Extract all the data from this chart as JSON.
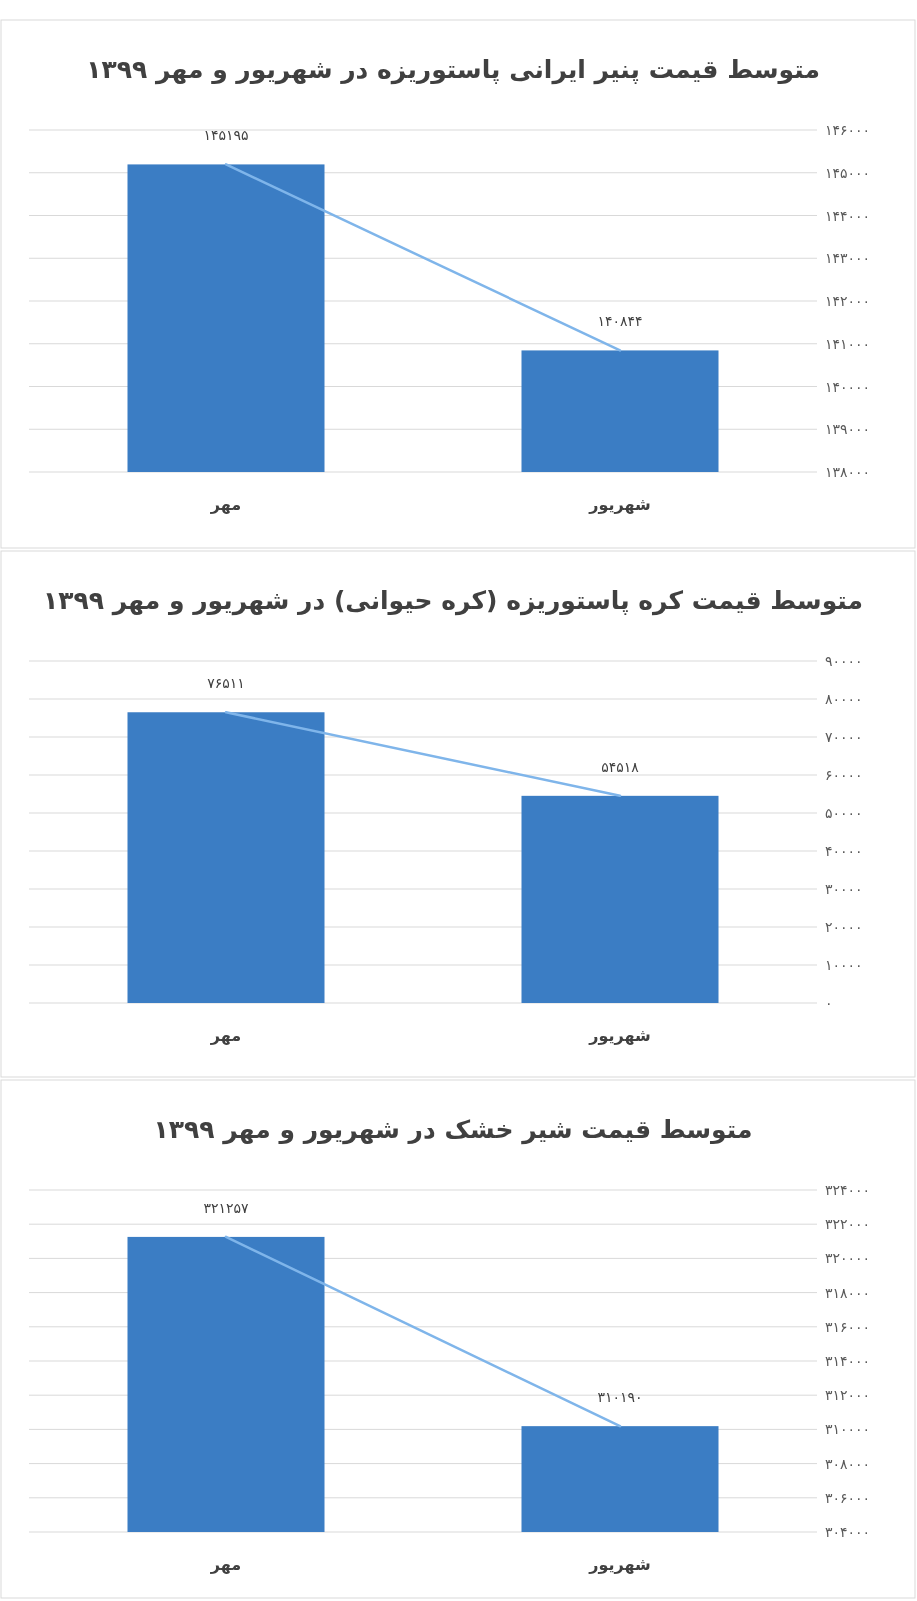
{
  "chart_data": [
    {
      "type": "bar",
      "title": "متوسط قیمت پنیر ایرانی پاستوریزه در شهریور و مهر ۱۳۹۹",
      "categories": [
        "مهر",
        "شهریور"
      ],
      "series": [
        {
          "color": "#3b7dc4",
          "values": [
            145195,
            140844
          ],
          "value_labels": [
            "۱۴۵۱۹۵",
            "۱۴۰۸۴۴"
          ]
        },
        {
          "type": "line",
          "color": "#7fb5ea",
          "values": [
            145195,
            140844
          ]
        }
      ],
      "ylim": [
        138000,
        146000
      ],
      "yticks": [
        {
          "value": 138000,
          "label": "۱۳۸۰۰۰"
        },
        {
          "value": 139000,
          "label": "۱۳۹۰۰۰"
        },
        {
          "value": 140000,
          "label": "۱۴۰۰۰۰"
        },
        {
          "value": 141000,
          "label": "۱۴۱۰۰۰"
        },
        {
          "value": 142000,
          "label": "۱۴۲۰۰۰"
        },
        {
          "value": 143000,
          "label": "۱۴۳۰۰۰"
        },
        {
          "value": 144000,
          "label": "۱۴۴۰۰۰"
        },
        {
          "value": 145000,
          "label": "۱۴۵۰۰۰"
        },
        {
          "value": 146000,
          "label": "۱۴۶۰۰۰"
        }
      ],
      "grid": "y"
    },
    {
      "type": "bar",
      "title": "متوسط قیمت کره پاستوریزه (کره حیوانی) در شهریور و مهر ۱۳۹۹",
      "categories": [
        "مهر",
        "شهریور"
      ],
      "series": [
        {
          "color": "#3b7dc4",
          "values": [
            76511,
            54518
          ],
          "value_labels": [
            "۷۶۵۱۱",
            "۵۴۵۱۸"
          ]
        },
        {
          "type": "line",
          "color": "#7fb5ea",
          "values": [
            76511,
            54518
          ]
        }
      ],
      "ylim": [
        0,
        90000
      ],
      "yticks": [
        {
          "value": 0,
          "label": "۰"
        },
        {
          "value": 10000,
          "label": "۱۰۰۰۰"
        },
        {
          "value": 20000,
          "label": "۲۰۰۰۰"
        },
        {
          "value": 30000,
          "label": "۳۰۰۰۰"
        },
        {
          "value": 40000,
          "label": "۴۰۰۰۰"
        },
        {
          "value": 50000,
          "label": "۵۰۰۰۰"
        },
        {
          "value": 60000,
          "label": "۶۰۰۰۰"
        },
        {
          "value": 70000,
          "label": "۷۰۰۰۰"
        },
        {
          "value": 80000,
          "label": "۸۰۰۰۰"
        },
        {
          "value": 90000,
          "label": "۹۰۰۰۰"
        }
      ],
      "grid": "y"
    },
    {
      "type": "bar",
      "title": "متوسط قیمت شیر خشک در شهریور و مهر ۱۳۹۹",
      "categories": [
        "مهر",
        "شهریور"
      ],
      "series": [
        {
          "color": "#3b7dc4",
          "values": [
            321257,
            310190
          ],
          "value_labels": [
            "۳۲۱۲۵۷",
            "۳۱۰۱۹۰"
          ]
        },
        {
          "type": "line",
          "color": "#7fb5ea",
          "values": [
            321257,
            310190
          ]
        }
      ],
      "ylim": [
        304000,
        324000
      ],
      "yticks": [
        {
          "value": 304000,
          "label": "۳۰۴۰۰۰"
        },
        {
          "value": 306000,
          "label": "۳۰۶۰۰۰"
        },
        {
          "value": 308000,
          "label": "۳۰۸۰۰۰"
        },
        {
          "value": 310000,
          "label": "۳۱۰۰۰۰"
        },
        {
          "value": 312000,
          "label": "۳۱۲۰۰۰"
        },
        {
          "value": 314000,
          "label": "۳۱۴۰۰۰"
        },
        {
          "value": 316000,
          "label": "۳۱۶۰۰۰"
        },
        {
          "value": 318000,
          "label": "۳۱۸۰۰۰"
        },
        {
          "value": 320000,
          "label": "۳۲۰۰۰۰"
        },
        {
          "value": 322000,
          "label": "۳۲۲۰۰۰"
        },
        {
          "value": 324000,
          "label": "۳۲۴۰۰۰"
        }
      ],
      "grid": "y"
    }
  ]
}
